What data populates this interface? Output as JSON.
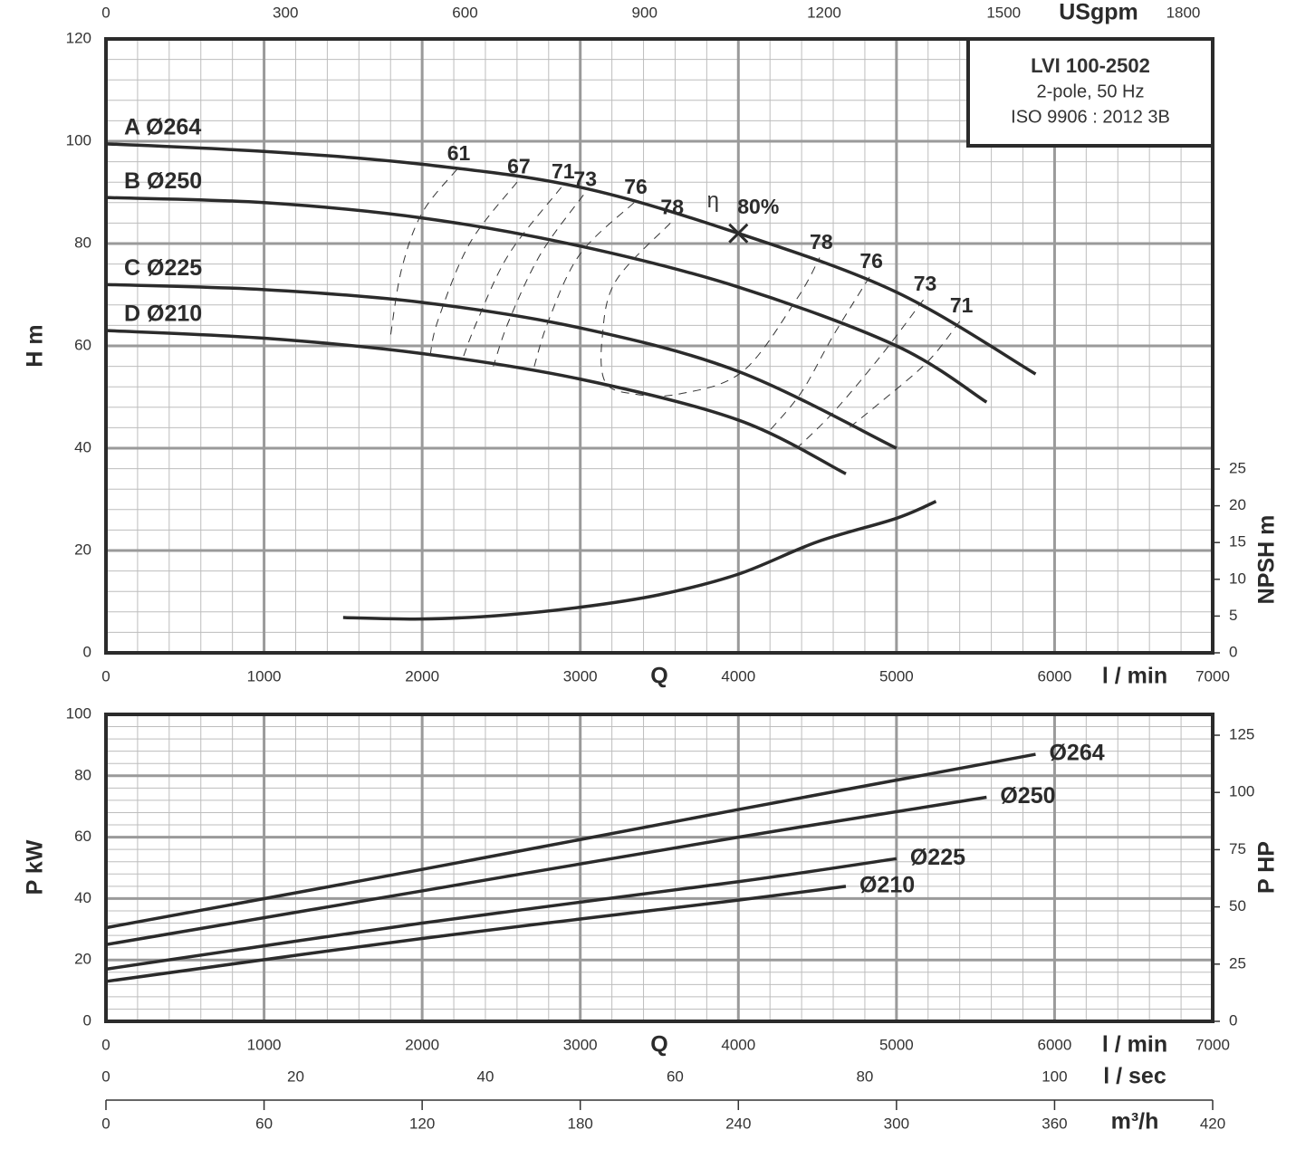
{
  "chart_data": [
    {
      "type": "line",
      "info": [
        "LVI 100-2502",
        "2-pole, 50 Hz",
        "ISO 9906 : 2012 3B"
      ],
      "xlabel": "Q",
      "xunit": "l / min",
      "xlim": [
        0,
        7000
      ],
      "xticks": [
        0,
        1000,
        2000,
        3000,
        4000,
        5000,
        6000,
        7000
      ],
      "x2label": "USgpm",
      "x2lim": [
        0,
        1849.2
      ],
      "x2ticks": [
        0,
        300,
        600,
        900,
        1200,
        1500,
        1800
      ],
      "ylabel": "H m",
      "ylim": [
        0,
        120
      ],
      "yticks": [
        0,
        20,
        40,
        60,
        80,
        100,
        120
      ],
      "y2label": "NPSH m",
      "y2lim": [
        0,
        83.5
      ],
      "y2ticks": [
        0,
        5,
        10,
        15,
        20,
        25
      ],
      "grid": true,
      "series": [
        {
          "name": "A Ø264",
          "color": "#2b2b2b",
          "x": [
            0,
            1000,
            2000,
            3000,
            4000,
            5000,
            5880
          ],
          "values": [
            99.5,
            98,
            95.5,
            91,
            82,
            70.5,
            54.5
          ]
        },
        {
          "name": "B Ø250",
          "color": "#2b2b2b",
          "x": [
            0,
            1000,
            2000,
            3000,
            4000,
            5000,
            5570
          ],
          "values": [
            89,
            88,
            85,
            79.5,
            71.5,
            60,
            49
          ]
        },
        {
          "name": "C Ø225",
          "color": "#2b2b2b",
          "x": [
            0,
            1000,
            2000,
            3000,
            4000,
            5000
          ],
          "values": [
            72,
            71,
            68.5,
            63.5,
            55,
            40
          ]
        },
        {
          "name": "D Ø210",
          "color": "#2b2b2b",
          "x": [
            0,
            1000,
            2000,
            3000,
            4000,
            4680
          ],
          "values": [
            63,
            61.5,
            58.5,
            53.5,
            45.5,
            35
          ]
        },
        {
          "color": "#2b2b2b",
          "axis": "y2",
          "x": [
            1500,
            2000,
            2500,
            3000,
            3500,
            4000,
            4500,
            5000,
            5250
          ],
          "values": [
            4.8,
            4.6,
            5.1,
            6.2,
            7.9,
            10.7,
            15.1,
            18.3,
            20.6
          ]
        }
      ],
      "efficiency": [
        {
          "label": "61",
          "x": [
            2220,
            2000,
            1870,
            1800
          ],
          "values": [
            94.5,
            86,
            75,
            62
          ]
        },
        {
          "label": "67",
          "x": [
            2600,
            2300,
            2100,
            2050
          ],
          "values": [
            92,
            80,
            65,
            58
          ]
        },
        {
          "label": "71",
          "x": [
            2880,
            2550,
            2350,
            2250
          ],
          "values": [
            91,
            78,
            65,
            57
          ]
        },
        {
          "label": "73",
          "x": [
            3020,
            2750,
            2550,
            2450
          ],
          "values": [
            89.5,
            78,
            65,
            56
          ]
        },
        {
          "label": "76",
          "x": [
            3340,
            3000,
            2800,
            2700
          ],
          "values": [
            88,
            78,
            65,
            55
          ]
        },
        {
          "label": "78",
          "x": [
            3570,
            3225,
            3140,
            3157,
            3340,
            3625,
            4027,
            4370,
            4513
          ],
          "values": [
            84,
            72.7,
            62,
            53,
            50.6,
            50.6,
            55,
            69.2,
            77.2
          ]
        },
        {
          "label": "78",
          "x": [
            4513
          ],
          "values": [
            77.2
          ]
        },
        {
          "label": "76",
          "x": [
            4830,
            4600,
            4400,
            4200
          ],
          "values": [
            73.5,
            62,
            51,
            43.5
          ]
        },
        {
          "label": "73",
          "x": [
            5170,
            4900,
            4600,
            4370
          ],
          "values": [
            69,
            58,
            47,
            40
          ]
        },
        {
          "label": "71",
          "x": [
            5400,
            5200,
            4900,
            4700
          ],
          "values": [
            64.8,
            57,
            49,
            44
          ]
        }
      ],
      "bep": {
        "symbol": "η",
        "label": "80%",
        "x": 4000,
        "value": 82
      }
    },
    {
      "type": "line",
      "xlabel": "Q",
      "xunit": "l / min",
      "xlim": [
        0,
        7000
      ],
      "xticks": [
        0,
        1000,
        2000,
        3000,
        4000,
        5000,
        6000,
        7000
      ],
      "x3label": "l / sec",
      "x3lim": [
        0,
        116.67
      ],
      "x3ticks": [
        0,
        20,
        40,
        60,
        80,
        100
      ],
      "x4label": "m³/h",
      "x4lim": [
        0,
        420
      ],
      "x4ticks": [
        0,
        60,
        120,
        180,
        240,
        300,
        360,
        420
      ],
      "ylabel": "P kW",
      "ylim": [
        0,
        100
      ],
      "yticks": [
        0,
        20,
        40,
        60,
        80,
        100
      ],
      "y2label": "P HP",
      "y2lim": [
        0,
        134.1
      ],
      "y2ticks": [
        0,
        25,
        50,
        75,
        100,
        125
      ],
      "grid": true,
      "series": [
        {
          "name": "Ø264",
          "color": "#2b2b2b",
          "x": [
            0,
            2000,
            4000,
            5880
          ],
          "values": [
            30.5,
            49.5,
            69,
            87
          ]
        },
        {
          "name": "Ø250",
          "color": "#2b2b2b",
          "x": [
            0,
            2000,
            4000,
            5570
          ],
          "values": [
            25,
            42.5,
            60,
            73
          ]
        },
        {
          "name": "Ø225",
          "color": "#2b2b2b",
          "x": [
            0,
            2000,
            4000,
            5000
          ],
          "values": [
            17,
            32,
            45.5,
            53
          ]
        },
        {
          "name": "Ø210",
          "color": "#2b2b2b",
          "x": [
            0,
            2000,
            4000,
            4680
          ],
          "values": [
            13,
            27,
            39.5,
            44
          ]
        }
      ]
    }
  ]
}
